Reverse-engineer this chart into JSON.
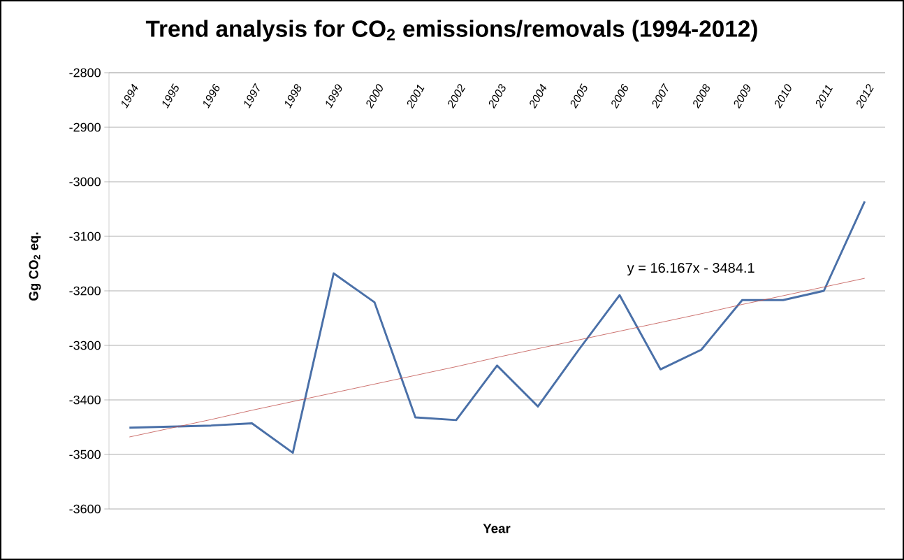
{
  "chart_data": {
    "type": "line",
    "title": "Trend analysis for CO$_{2}$ emissions/removals (1994-2012)",
    "xlabel": "Year",
    "ylabel": "Gg CO$_{2}$ eq.",
    "categories": [
      "1994",
      "1995",
      "1996",
      "1997",
      "1998",
      "1999",
      "2000",
      "2001",
      "2002",
      "2003",
      "2004",
      "2005",
      "2006",
      "2007",
      "2008",
      "2009",
      "2010",
      "2011",
      "2012"
    ],
    "series": [
      {
        "color": "#4a70a8",
        "values": [
          -3451,
          -3449,
          -3447,
          -3443,
          -3497,
          -3168,
          -3221,
          -3432,
          -3437,
          -3337,
          -3412,
          -3308,
          -3208,
          -3344,
          -3308,
          -3217,
          -3217,
          -3200,
          -3036
        ]
      },
      {
        "type": "line",
        "color": "#c0504d",
        "values": [
          -3468,
          -3452,
          -3436,
          -3419,
          -3403,
          -3387,
          -3371,
          -3355,
          -3339,
          -3322,
          -3306,
          -3290,
          -3274,
          -3258,
          -3242,
          -3225,
          -3209,
          -3193,
          -3177
        ]
      }
    ],
    "ylim": [
      -3600,
      -2800
    ],
    "yticks": [
      -3600,
      -3500,
      -3400,
      -3300,
      -3200,
      -3100,
      -3000,
      -2900,
      -2800
    ],
    "grid": "y",
    "annotations": [
      "y = 16.167x - 3484.1"
    ]
  }
}
